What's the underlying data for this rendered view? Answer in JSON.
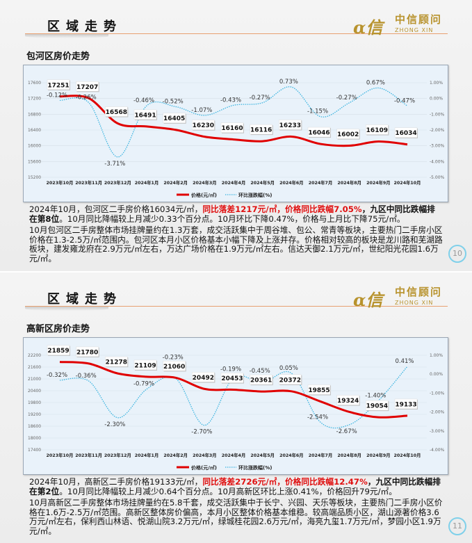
{
  "slides": [
    {
      "header_title": "区域走势",
      "logo": {
        "cn": "中信顾问",
        "en": "ZHONG XIN"
      },
      "subtitle": "包河区房价走势",
      "para1": {
        "a": "2024年10月，包河区二手房价格16034元/㎡，",
        "red": "同比落差1217元/㎡，价格同比跌幅7.05%",
        "bold": "，九区中同比跌幅排在第8位",
        "b": "。10月同比降幅较上月减少0.33个百分点。10月环比下降0.47%，价格与上月比下降75元/㎡。"
      },
      "para2": "10月包河区二手房整体市场挂牌量约在1.3万套，成交活跃集中于周谷堆、包公、常青等板块，主要热门二手房小区价格在1.3-2.5万/㎡范围内。包河区本月小区价格基本小幅下降及上涨并存。价格相对较高的板块是龙川路和芜湖路板块，建发雍龙府在2.9万元/㎡左右，万达广场价格在1.9万元/㎡左右。信达天御2.1万元/㎡，世纪阳光花园1.6万元/㎡。",
      "page_number": "10"
    },
    {
      "header_title": "区域走势",
      "logo": {
        "cn": "中信顾问",
        "en": "ZHONG XIN"
      },
      "subtitle": "高新区房价走势",
      "para1": {
        "a": "2024年10月，高新区二手房价格19133元/㎡，",
        "red": "同比落差2726元/㎡，价格同比跌幅12.47%",
        "bold": "，九区中同比跌幅排在第2位",
        "b": "。10月同比降幅较上月减少0.64个百分点。10月高新区环比上涨0.41%，价格回升79元/㎡。"
      },
      "para2": "10月高新区二手房整体市场挂牌量约在5.8千套，成交活跃集中于长宁、兴园、天乐等板块，主要热门二手房小区价格在1.6万-2.5万/㎡范围。高新区整体房价偏高，本月小区整体价格基本维稳。较高端品质小区，湖山源著价格3.6万元/㎡左右，保利西山林语、悦湖山院3.2万元/㎡，绿城桂花园2.6万元/㎡，海亮九玺1.7万元/㎡，梦园小区1.9万元/㎡。",
      "page_number": "11"
    }
  ],
  "watermark": "中信顾问",
  "colors": {
    "price_line": "#e00000",
    "mom_line": "#3ab4e0",
    "accent_red": "#e01010",
    "logo_gold": "#b8932e"
  },
  "chart_data": [
    {
      "type": "line",
      "categories": [
        "2023年10月",
        "2023年11月",
        "2023年12月",
        "2024年1月",
        "2024年2月",
        "2024年3月",
        "2024年4月",
        "2024年5月",
        "2024年6月",
        "2024年7月",
        "2024年8月",
        "2024年9月",
        "2024年10月"
      ],
      "series": [
        {
          "name": "价格(元/㎡)",
          "axis": "left",
          "style": "solid",
          "values": [
            17251,
            17207,
            16568,
            16491,
            16405,
            16230,
            16160,
            16116,
            16233,
            16046,
            16002,
            16109,
            16034
          ],
          "labels": [
            "17251",
            "17207",
            "16568",
            "16491",
            "16405",
            "16230",
            "16160",
            "16116",
            "16233",
            "16046",
            "16002",
            "16109",
            "16034"
          ]
        },
        {
          "name": "环比涨跌幅(%)",
          "axis": "right",
          "style": "dotted",
          "values": [
            -0.12,
            -0.26,
            -3.71,
            -0.46,
            -0.52,
            -1.07,
            -0.43,
            -0.27,
            0.73,
            -1.15,
            -0.27,
            0.67,
            -0.47
          ],
          "labels": [
            "-0.12%",
            "-0.26%",
            "-3.71%",
            "-0.46%",
            "-0.52%",
            "-1.07%",
            "-0.43%",
            "-0.27%",
            "0.73%",
            "-1.15%",
            "-0.27%",
            "0.67%",
            "-0.47%"
          ]
        }
      ],
      "y_left": {
        "min": 15200,
        "max": 17600,
        "step": 400,
        "ticks": [
          "17600",
          "17200",
          "16800",
          "16400",
          "16000",
          "15600",
          "15200"
        ]
      },
      "y_right": {
        "min": -5,
        "max": 1,
        "step": 1,
        "ticks": [
          "1.00%",
          "0.00%",
          "-1.00%",
          "-2.00%",
          "-3.00%",
          "-4.00%",
          "-5.00%"
        ]
      },
      "legend_placement": "bottom",
      "grid": "horizontal"
    },
    {
      "type": "line",
      "categories": [
        "2023年10月",
        "2023年11月",
        "2023年12月",
        "2024年1月",
        "2024年2月",
        "2024年3月",
        "2024年4月",
        "2024年5月",
        "2024年6月",
        "2024年7月",
        "2024年8月",
        "2024年9月",
        "2024年10月"
      ],
      "series": [
        {
          "name": "价格(元/㎡)",
          "axis": "left",
          "style": "solid",
          "values": [
            21859,
            21780,
            21278,
            21109,
            21060,
            20492,
            20453,
            20361,
            20372,
            19855,
            19324,
            19054,
            19133
          ],
          "labels": [
            "21859",
            "21780",
            "21278",
            "21109",
            "21060",
            "20492",
            "20453",
            "20361",
            "20372",
            "19855",
            "19324",
            "19054",
            "19133"
          ]
        },
        {
          "name": "环比涨跌幅(%)",
          "axis": "right",
          "style": "dotted",
          "values": [
            -0.32,
            -0.36,
            -2.3,
            -0.79,
            -0.23,
            -2.7,
            -0.19,
            -0.45,
            0.05,
            -2.54,
            -2.67,
            -1.4,
            0.41
          ],
          "labels": [
            "-0.32%",
            "-0.36%",
            "-2.30%",
            "-0.79%",
            "-0.23%",
            "-2.70%",
            "-0.19%",
            "-0.45%",
            "0.05%",
            "-2.54%",
            "-2.67%",
            "-1.40%",
            "0.41%"
          ]
        }
      ],
      "y_left": {
        "min": 17400,
        "max": 22200,
        "step": 600,
        "ticks": [
          "22200",
          "21600",
          "21000",
          "20400",
          "19800",
          "19200",
          "18600",
          "18000",
          "17400"
        ]
      },
      "y_right": {
        "min": -4,
        "max": 1,
        "step": 1,
        "ticks": [
          "1.00%",
          "0.00%",
          "-1.00%",
          "-2.00%",
          "-3.00%",
          "-4.00%"
        ]
      },
      "legend_placement": "bottom",
      "grid": "horizontal"
    }
  ]
}
